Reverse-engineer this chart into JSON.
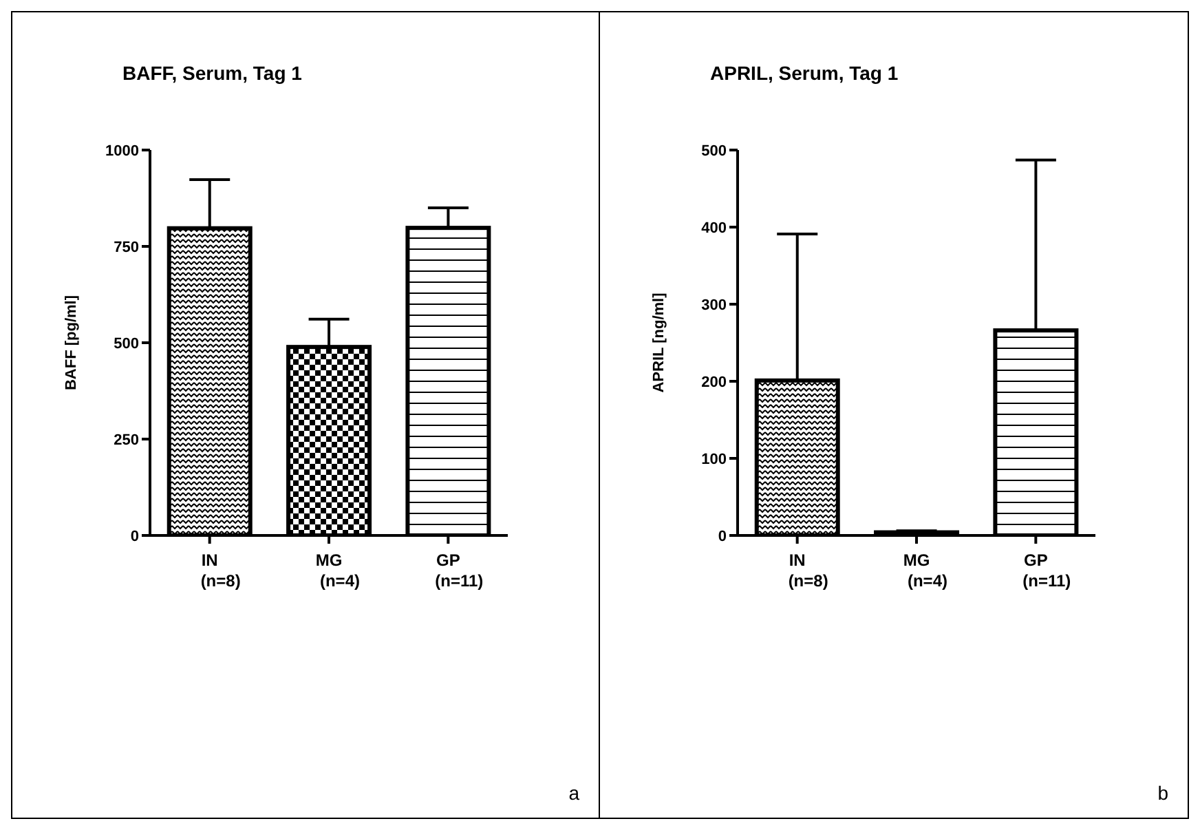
{
  "chart_data": [
    {
      "type": "bar",
      "title": "BAFF, Serum, Tag 1",
      "ylabel": "BAFF [pg/ml]",
      "categories": [
        "IN\n(n=8)",
        "MG\n(n=4)",
        "GP\n(n=11)"
      ],
      "values": [
        797,
        489,
        798
      ],
      "colors": [
        "#000000",
        "#000000",
        "#000000"
      ],
      "errors": [
        [
          797,
          923
        ],
        [
          489,
          561
        ],
        [
          798,
          850
        ]
      ],
      "ylim": [
        0,
        1000
      ],
      "yticks": [
        0,
        250,
        500,
        750,
        1000
      ],
      "grid": false,
      "annotations": [
        "a"
      ]
    },
    {
      "type": "bar",
      "title": "APRIL, Serum, Tag 1",
      "ylabel": "APRIL [ng/ml]",
      "categories": [
        "IN\n(n=8)",
        "MG\n(n=4)",
        "GP\n(n=11)"
      ],
      "values": [
        201,
        4,
        266
      ],
      "colors": [
        "#000000",
        "#000000",
        "#000000"
      ],
      "errors": [
        [
          201,
          391
        ],
        [
          4,
          6
        ],
        [
          266,
          487
        ]
      ],
      "ylim": [
        0,
        500
      ],
      "yticks": [
        0,
        100,
        200,
        300,
        400,
        500
      ],
      "grid": false,
      "annotations": [
        "b"
      ]
    }
  ]
}
